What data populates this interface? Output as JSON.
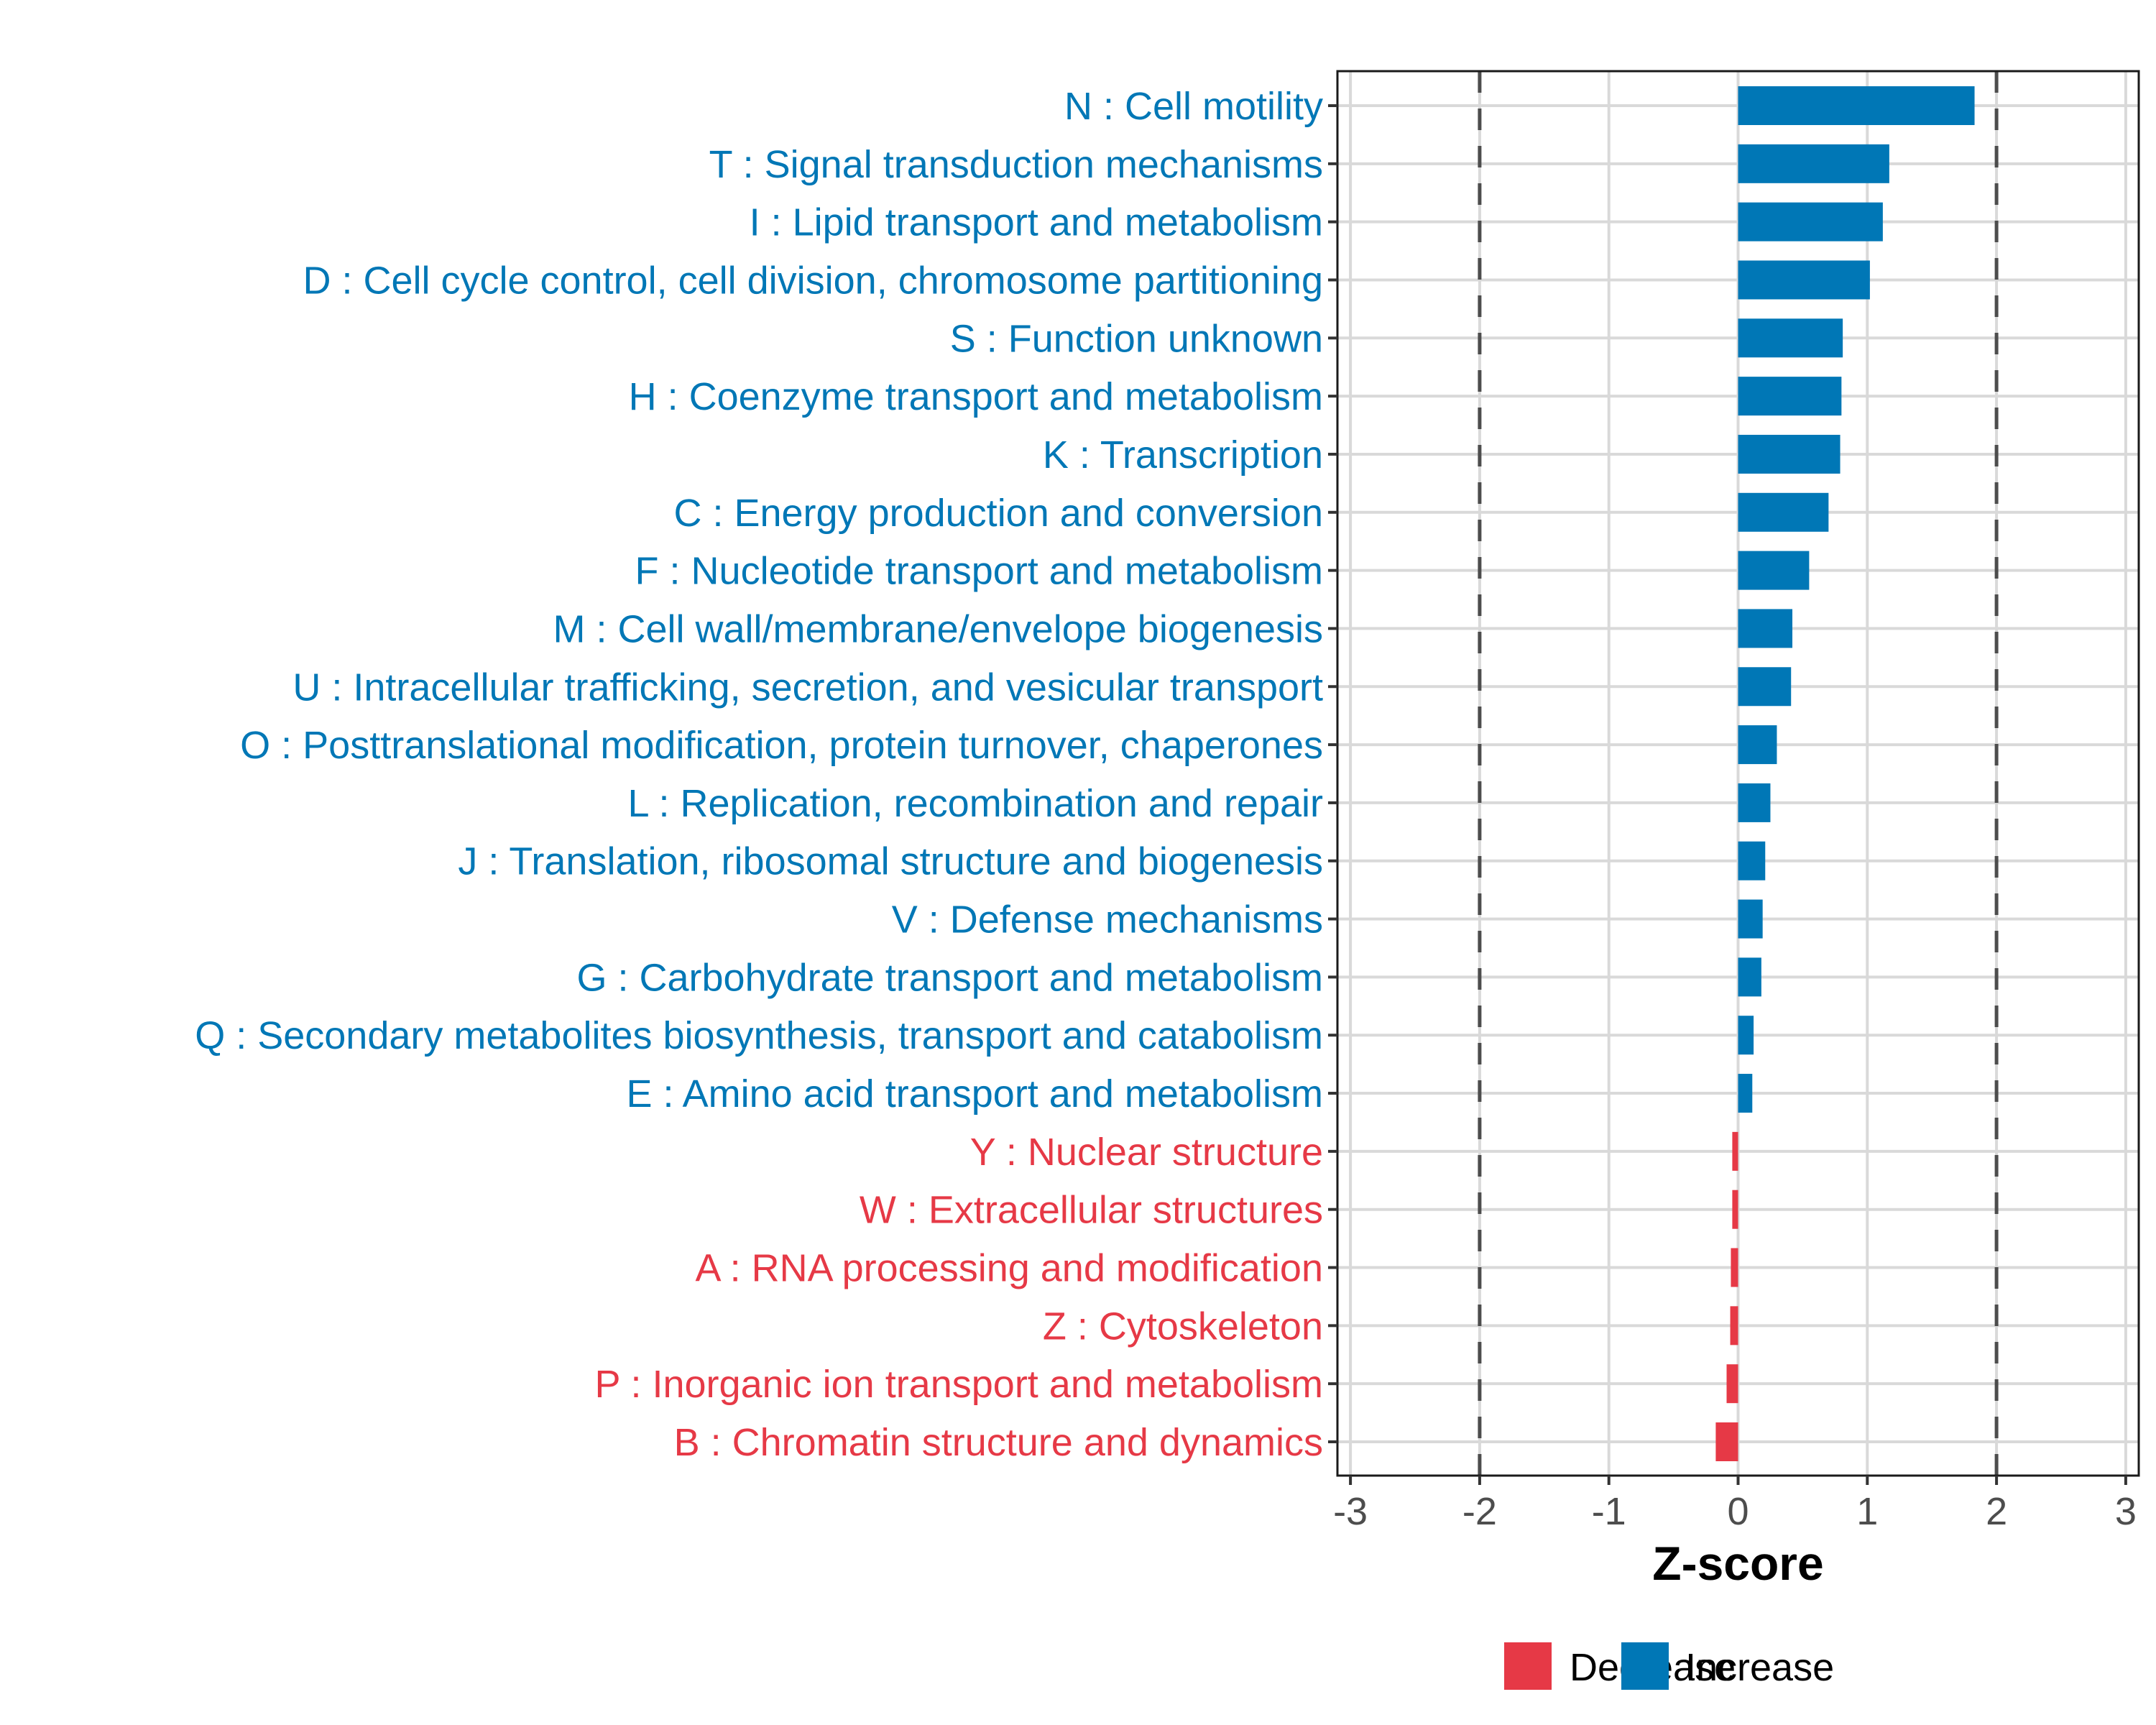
{
  "chart_data": {
    "type": "bar",
    "orientation": "horizontal",
    "title": "",
    "xlabel": "Z-score",
    "ylabel": "",
    "xlim": [
      -3.1,
      3.1
    ],
    "x_ticks": [
      -3,
      -2,
      -1,
      0,
      1,
      2,
      3
    ],
    "x_tick_labels": [
      "-3",
      "-2",
      "-1",
      "0",
      "1",
      "2",
      "3"
    ],
    "reference_lines": [
      -2,
      2
    ],
    "grid": true,
    "legend_position": "bottom",
    "colors": {
      "Decrease": "#E63946",
      "Increase": "#0077B6"
    },
    "legend": [
      {
        "name": "Decrease",
        "color": "#E63946"
      },
      {
        "name": "Increase",
        "color": "#0077B6"
      }
    ],
    "categories": [
      "N : Cell motility",
      "T : Signal transduction mechanisms",
      "I : Lipid transport and metabolism",
      "D : Cell cycle control, cell division, chromosome partitioning",
      "S : Function unknown",
      "H : Coenzyme transport and metabolism",
      "K : Transcription",
      "C : Energy production and conversion",
      "F : Nucleotide transport and metabolism",
      "M : Cell wall/membrane/envelope biogenesis",
      "U : Intracellular trafficking, secretion, and vesicular transport",
      "O : Posttranslational modification, protein turnover, chaperones",
      "L : Replication, recombination and repair",
      "J : Translation, ribosomal structure and biogenesis",
      "V : Defense mechanisms",
      "G : Carbohydrate transport and metabolism",
      "Q : Secondary metabolites biosynthesis, transport and catabolism",
      "E : Amino acid transport and metabolism",
      "Y : Nuclear structure",
      "W : Extracellular structures",
      "A : RNA processing and modification",
      "Z : Cytoskeleton",
      "P : Inorganic ion transport and metabolism",
      "B : Chromatin structure and dynamics"
    ],
    "values": [
      1.83,
      1.17,
      1.12,
      1.02,
      0.81,
      0.8,
      0.79,
      0.7,
      0.55,
      0.42,
      0.41,
      0.3,
      0.25,
      0.21,
      0.19,
      0.18,
      0.12,
      0.11,
      -0.045,
      -0.045,
      -0.056,
      -0.061,
      -0.089,
      -0.173
    ],
    "direction": [
      "Increase",
      "Increase",
      "Increase",
      "Increase",
      "Increase",
      "Increase",
      "Increase",
      "Increase",
      "Increase",
      "Increase",
      "Increase",
      "Increase",
      "Increase",
      "Increase",
      "Increase",
      "Increase",
      "Increase",
      "Increase",
      "Decrease",
      "Decrease",
      "Decrease",
      "Decrease",
      "Decrease",
      "Decrease"
    ]
  }
}
